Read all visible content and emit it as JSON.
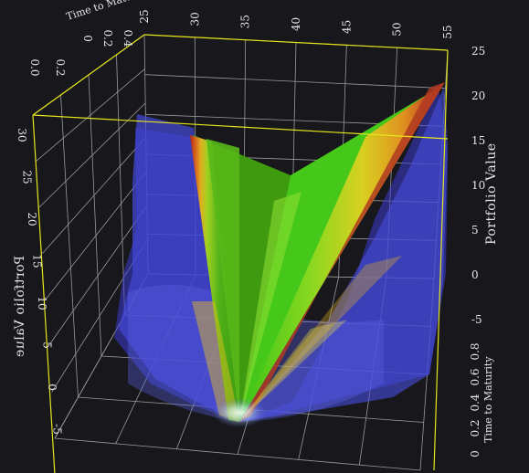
{
  "chart_data": {
    "type": "surface3d",
    "title": "",
    "axes": {
      "strike": {
        "label": "",
        "ticks": [
          "25",
          "30",
          "35",
          "40",
          "45",
          "50",
          "55"
        ],
        "range": [
          25,
          55
        ]
      },
      "portfolio_value": {
        "label": "Portfolio Value",
        "ticks": [
          "25",
          "20",
          "15",
          "10",
          "5",
          "0",
          "-5"
        ],
        "range": [
          -5,
          25
        ]
      },
      "time_to_maturity_right": {
        "label": "Time to Maturity",
        "ticks": [
          "0.8",
          "0.6",
          "0.4",
          "0.2",
          "0"
        ],
        "range": [
          0,
          0.8
        ]
      },
      "time_to_maturity_top": {
        "label": "Time to Maturity",
        "ticks": [
          "0",
          "0.2",
          "0.4"
        ]
      },
      "portfolio_value_left": {
        "label": "Portfolio Value",
        "ticks": [
          "30",
          "25",
          "20",
          "15",
          "10",
          "5",
          "0",
          "-5"
        ],
        "range": [
          -5,
          30
        ]
      },
      "left_top_ticks": [
        "0.0",
        "0.2"
      ]
    },
    "surface": {
      "description": "Semi-transparent isosurfaces forming a V-shaped payoff surface (straddle-like) with minimum near strike 38 at maturity.",
      "color_scale": [
        "#3b3fd0",
        "#c03020",
        "#e07a20",
        "#e8c020",
        "#b0e020",
        "#40d020",
        "#309010"
      ]
    },
    "grid": true,
    "box_color": "#e6e61a",
    "grid_color": "#9a9a9a"
  }
}
